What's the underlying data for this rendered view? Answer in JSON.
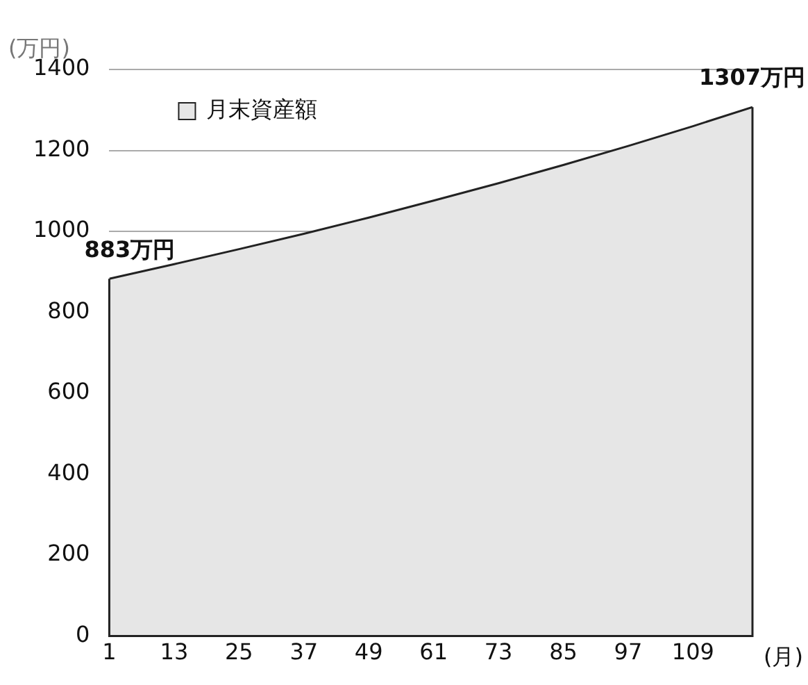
{
  "chart_data": {
    "type": "area",
    "xlabel": "(月)",
    "ylabel": "(万円)",
    "x": [
      1,
      13,
      25,
      37,
      49,
      61,
      73,
      85,
      97,
      109,
      120
    ],
    "series": [
      {
        "name": "月末資産額",
        "color": "#e6e6e6",
        "values": [
          883,
          919,
          956,
          994,
          1034,
          1076,
          1119,
          1164,
          1211,
          1260,
          1307
        ]
      }
    ],
    "xlim": [
      1,
      120
    ],
    "xticks": [
      1,
      13,
      25,
      37,
      49,
      61,
      73,
      85,
      97,
      109
    ],
    "ylim": [
      0,
      1400
    ],
    "yticks": [
      0,
      200,
      400,
      600,
      800,
      1000,
      1200,
      1400
    ],
    "grid": "y",
    "legend": "top left",
    "marker": "none",
    "annotations": [
      {
        "text": "883万円",
        "x": 1,
        "y": 883
      },
      {
        "text": "1307万円",
        "x": 120,
        "y": 1307
      }
    ]
  }
}
